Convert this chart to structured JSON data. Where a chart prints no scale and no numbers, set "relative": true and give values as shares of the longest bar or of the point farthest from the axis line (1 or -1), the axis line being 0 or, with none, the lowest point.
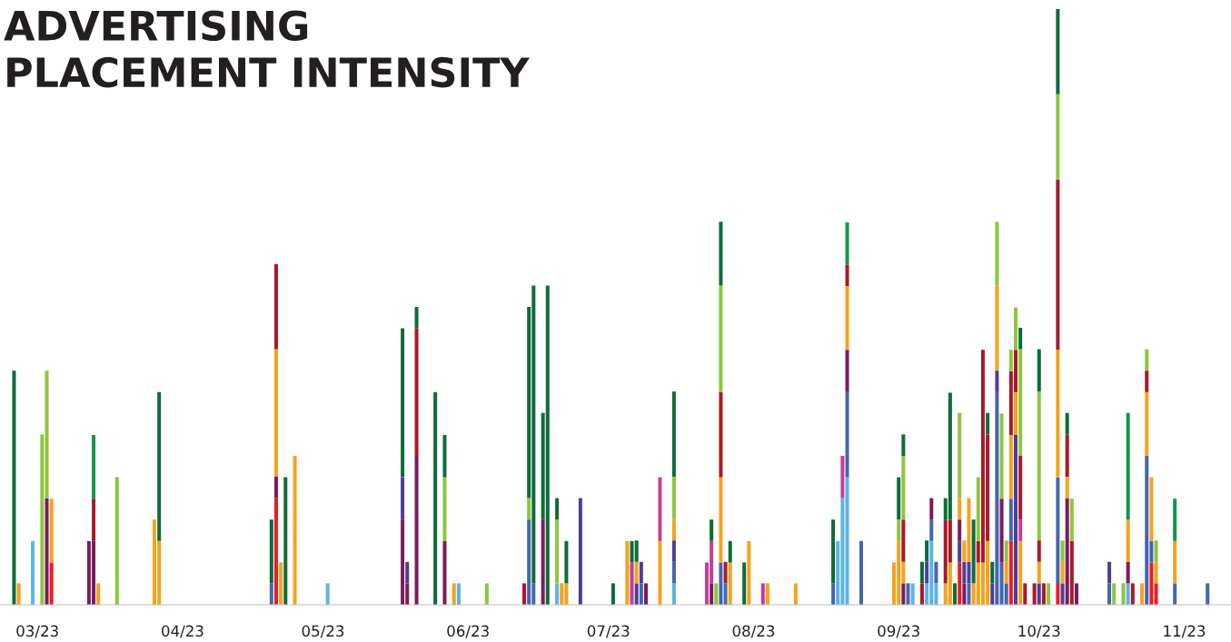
{
  "chart_data": {
    "type": "bar",
    "stacked": true,
    "relative": true,
    "title": "ADVERTISING\nPLACEMENT INTENSITY",
    "xlim": [
      "2023-02-21",
      "2023-11-11"
    ],
    "xticks": [
      {
        "value": "2023-03-01",
        "label": "03/23"
      },
      {
        "value": "2023-04-01",
        "label": "04/23"
      },
      {
        "value": "2023-05-01",
        "label": "05/23"
      },
      {
        "value": "2023-06-01",
        "label": "06/23"
      },
      {
        "value": "2023-07-01",
        "label": "07/23"
      },
      {
        "value": "2023-08-01",
        "label": "08/23"
      },
      {
        "value": "2023-09-01",
        "label": "09/23"
      },
      {
        "value": "2023-10-01",
        "label": "10/23"
      },
      {
        "value": "2023-11-01",
        "label": "11/23"
      }
    ],
    "grid": false,
    "legend": false,
    "x": [
      "2023-02-24",
      "2023-02-25",
      "2023-02-28",
      "2023-03-02",
      "2023-03-03",
      "2023-03-04",
      "2023-03-12",
      "2023-03-13",
      "2023-03-14",
      "2023-03-18",
      "2023-03-26",
      "2023-03-27",
      "2023-04-20",
      "2023-04-21",
      "2023-04-22",
      "2023-04-23",
      "2023-04-25",
      "2023-05-02",
      "2023-05-18",
      "2023-05-19",
      "2023-05-21",
      "2023-05-25",
      "2023-05-27",
      "2023-05-29",
      "2023-05-30",
      "2023-06-05",
      "2023-06-13",
      "2023-06-14",
      "2023-06-15",
      "2023-06-17",
      "2023-06-18",
      "2023-06-20",
      "2023-06-21",
      "2023-06-22",
      "2023-06-25",
      "2023-07-02",
      "2023-07-05",
      "2023-07-06",
      "2023-07-07",
      "2023-07-08",
      "2023-07-09",
      "2023-07-12",
      "2023-07-15",
      "2023-07-22",
      "2023-07-23",
      "2023-07-24",
      "2023-07-25",
      "2023-07-26",
      "2023-07-27",
      "2023-07-30",
      "2023-07-31",
      "2023-08-03",
      "2023-08-04",
      "2023-08-10",
      "2023-08-18",
      "2023-08-19",
      "2023-08-20",
      "2023-08-21",
      "2023-08-24",
      "2023-08-31",
      "2023-09-01",
      "2023-09-02",
      "2023-09-03",
      "2023-09-04",
      "2023-09-06",
      "2023-09-07",
      "2023-09-08",
      "2023-09-09",
      "2023-09-11",
      "2023-09-12",
      "2023-09-13",
      "2023-09-14",
      "2023-09-15",
      "2023-09-16",
      "2023-09-17",
      "2023-09-18",
      "2023-09-19",
      "2023-09-20",
      "2023-09-21",
      "2023-09-22",
      "2023-09-23",
      "2023-09-24",
      "2023-09-25",
      "2023-09-26",
      "2023-09-27",
      "2023-09-28",
      "2023-09-30",
      "2023-10-01",
      "2023-10-02",
      "2023-10-03",
      "2023-10-05",
      "2023-10-06",
      "2023-10-07",
      "2023-10-08",
      "2023-10-09",
      "2023-10-16",
      "2023-10-17",
      "2023-10-19",
      "2023-10-20",
      "2023-10-21",
      "2023-10-23",
      "2023-10-24",
      "2023-10-25",
      "2023-10-26",
      "2023-10-30",
      "2023-11-06"
    ],
    "series": [
      {
        "values": [
          0.393,
          0.036,
          0.107,
          0.286,
          0.179,
          0.071,
          0.107,
          0.107,
          0.036,
          0.214,
          0.143,
          0.107,
          0.036,
          0.179,
          0.071,
          0.214,
          0.25,
          0.036,
          0.143,
          0.036,
          0.25,
          0.357,
          0.107,
          0.036,
          0.036,
          0.036,
          0.036,
          0.143,
          0.036,
          0.143,
          0.536,
          0.036,
          0.036,
          0.036,
          0.179,
          0.036,
          0.107,
          0.071,
          0.036,
          0.036,
          0.036,
          0.107,
          0.036,
          0.071,
          0.036,
          0.036,
          0.071,
          0.036,
          0.071,
          0.071,
          0.107,
          0.036,
          0.036,
          0.036,
          0.036,
          0.107,
          0.179,
          0.214,
          0.107,
          0.071,
          0.107,
          0.036,
          0.036,
          0.036,
          0.036,
          0.036,
          0.107,
          0.036,
          0.036,
          0.071,
          0.036,
          0.071,
          0.036,
          0.036,
          0.036,
          0.071,
          0.071,
          0.107,
          0.036,
          0.357,
          0.071,
          0.036,
          0.107,
          0.286,
          0.107,
          0.036,
          0.036,
          0.036,
          0.036,
          0.036,
          0.035,
          0.036,
          0.179,
          0.107,
          0.036,
          0.036,
          0.036,
          0.036,
          0.036,
          0.036,
          0.036,
          0.25,
          0.071,
          0.036,
          0.036,
          0.036
        ],
        "colors": [
          "#0f6b3a",
          "#f6a21e",
          "#5db3e6",
          "#8dc63f",
          "#7a1c5c",
          "#ed1c24",
          "#7a1c5c",
          "#7a1c5c",
          "#f6a21e",
          "#8dc63f",
          "#f6a21e",
          "#f6a21e",
          "#4466b0",
          "#ed1c24",
          "#f6a21e",
          "#0f6b3a",
          "#f6a21e",
          "#5db3e6",
          "#7a1c5c",
          "#7a1c5c",
          "#7a1c5c",
          "#0f6b3a",
          "#7a1c5c",
          "#f6a21e",
          "#5db3e6",
          "#8dc63f",
          "#a71b28",
          "#4466b0",
          "#4466b0",
          "#7a1c5c",
          "#0f6b3a",
          "#5db3e6",
          "#f6a21e",
          "#f6a21e",
          "#4f3d98",
          "#0f6b3a",
          "#f6a21e",
          "#c33f98",
          "#4f3d98",
          "#4466b0",
          "#7a1c5c",
          "#f6a21e",
          "#5db3e6",
          "#c33f98",
          "#7a1c5c",
          "#8dc63f",
          "#4466b0",
          "#4466b0",
          "#f6a21e",
          "#0f6b3a",
          "#f6a21e",
          "#c33f98",
          "#f6a21e",
          "#f6a21e",
          "#4466b0",
          "#5db3e6",
          "#5db3e6",
          "#5db3e6",
          "#4466b0",
          "#f6a21e",
          "#f6a21e",
          "#7a1c5c",
          "#4466b0",
          "#5db3e6",
          "#a71b28",
          "#5db3e6",
          "#5db3e6",
          "#5db3e6",
          "#f6a21e",
          "#f6a21e",
          "#0f6b3a",
          "#ed1c24",
          "#7a1c5c",
          "#4466b0",
          "#f6a21e",
          "#f6a21e",
          "#f6a21e",
          "#f6a21e",
          "#4f3d98",
          "#4466b0",
          "#4466b0",
          "#4466b0",
          "#ed1c24",
          "#4f3d98",
          "#f6a21e",
          "#a71b28",
          "#a71b28",
          "#4f3d98",
          "#a71b28",
          "#8dc63f",
          "#ed1c24",
          "#4f3d98",
          "#7a1c5c",
          "#a71b28",
          "#7a1c5c",
          "#4466b0",
          "#8dc63f",
          "#8dc63f",
          "#5db3e6",
          "#a71b28",
          "#f6a21e",
          "#4466b0",
          "#ed1c24",
          "#ed1c24",
          "#4466b0",
          "#4466b0"
        ]
      },
      {
        "values": [
          null,
          null,
          null,
          null,
          0.214,
          0.107,
          null,
          0.071,
          null,
          null,
          null,
          0.25,
          0.107,
          0.036,
          null,
          null,
          null,
          null,
          0.071,
          0.036,
          0.214,
          null,
          0.107,
          null,
          null,
          null,
          null,
          0.036,
          0.5,
          0.179,
          null,
          0.107,
          null,
          0.071,
          null,
          null,
          null,
          0.036,
          0.036,
          0.036,
          null,
          0.107,
          0.036,
          null,
          0.071,
          null,
          0.143,
          0.036,
          0.036,
          null,
          null,
          null,
          null,
          null,
          0.107,
          null,
          0.071,
          0.143,
          null,
          null,
          0.036,
          0.036,
          null,
          null,
          0.036,
          0.036,
          0.036,
          0.036,
          0.107,
          0.071,
          null,
          0.036,
          0.036,
          0.036,
          0.107,
          0.036,
          0.357,
          0.179,
          0.036,
          0.036,
          0.107,
          0.036,
          0.071,
          0.071,
          0.036,
          null,
          null,
          0.036,
          null,
          null,
          0.179,
          0.036,
          0.036,
          0.071,
          null,
          0.036,
          null,
          null,
          0.036,
          null,
          null,
          0.107,
          0.036,
          0.036,
          0.071,
          null
        ],
        "colors": [
          null,
          null,
          null,
          null,
          "#8dc63f",
          "#f6a21e",
          null,
          "#a71b28",
          null,
          null,
          null,
          "#0f6b3a",
          "#0f6b3a",
          "#7a1c5c",
          null,
          null,
          null,
          null,
          "#4f3d98",
          "#4f3d98",
          "#a71b28",
          null,
          "#8dc63f",
          null,
          null,
          null,
          null,
          "#8dc63f",
          "#0f6b3a",
          "#0f6b3a",
          null,
          "#8dc63f",
          null,
          "#0f6b3a",
          null,
          null,
          null,
          "#0f6b3a",
          "#f6a21e",
          "#4f3d98",
          null,
          "#c33f98",
          "#4466b0",
          null,
          "#c33f98",
          null,
          "#f6a21e",
          "#a71b28",
          "#0f6b3a",
          null,
          null,
          null,
          null,
          null,
          "#0f6b3a",
          null,
          "#c33f98",
          "#4466b0",
          null,
          null,
          "#8dc63f",
          "#f6a21e",
          null,
          null,
          "#0f6b3a",
          "#4f3d98",
          "#4466b0",
          "#4466b0",
          "#a71b28",
          "#a71b28",
          null,
          "#4f3d98",
          "#4f3d98",
          "#4f3d98",
          "#0f6b3a",
          "#a71b28",
          "#a71b28",
          "#a71b28",
          "#0f6b3a",
          "#4f3d98",
          "#7a1c5c",
          "#f6a21e",
          "#4466b0",
          "#f6a21e",
          "#c33f98",
          null,
          null,
          "#f6a21e",
          null,
          null,
          "#4466b0",
          "#f6a21e",
          "#f6a21e",
          "#8dc63f",
          null,
          "#4f3d98",
          null,
          null,
          "#7a1c5c",
          null,
          null,
          "#f6a21e",
          "#4466b0",
          "#f6a21e",
          "#f6a21e",
          null
        ]
      },
      {
        "values": [
          null,
          null,
          null,
          null,
          null,
          null,
          null,
          0.107,
          null,
          null,
          null,
          null,
          null,
          0.214,
          null,
          null,
          null,
          null,
          0.25,
          null,
          0.036,
          null,
          0.071,
          null,
          null,
          null,
          null,
          0.321,
          null,
          null,
          null,
          0.036,
          null,
          null,
          null,
          null,
          null,
          null,
          0.036,
          null,
          null,
          null,
          0.036,
          null,
          0.036,
          null,
          0.143,
          null,
          null,
          null,
          null,
          null,
          null,
          null,
          null,
          null,
          null,
          0.071,
          null,
          null,
          0.071,
          0.071,
          null,
          null,
          null,
          0.036,
          0.036,
          null,
          0.036,
          0.214,
          null,
          0.036,
          0.036,
          0.107,
          null,
          0.107,
          null,
          0.036,
          null,
          0.143,
          0.143,
          0.036,
          0.107,
          0.071,
          0.107,
          null,
          null,
          0.036,
          null,
          null,
          0.214,
          0.036,
          0.071,
          null,
          null,
          null,
          null,
          null,
          0.071,
          null,
          null,
          0.036,
          0.107,
          0.036,
          0.071,
          null
        ],
        "colors": [
          null,
          null,
          null,
          null,
          null,
          null,
          null,
          "#12964a",
          null,
          null,
          null,
          null,
          null,
          "#f6a21e",
          null,
          null,
          null,
          null,
          "#0f6b3a",
          null,
          "#0f6b3a",
          null,
          "#0f6b3a",
          null,
          null,
          null,
          null,
          "#0f6b3a",
          null,
          null,
          null,
          "#0f6b3a",
          null,
          null,
          null,
          null,
          null,
          null,
          "#0f6b3a",
          null,
          null,
          null,
          "#4f3d98",
          null,
          "#0f6b3a",
          null,
          "#a71b28",
          null,
          null,
          null,
          null,
          null,
          null,
          null,
          null,
          null,
          null,
          "#7a1c5c",
          null,
          null,
          "#0f6b3a",
          "#a71b28",
          null,
          null,
          null,
          "#0f6b3a",
          "#7a1c5c",
          null,
          "#0f6b3a",
          "#0f6b3a",
          null,
          "#7a1c5c",
          "#f6a21e",
          "#f6a21e",
          null,
          "#8dc63f",
          null,
          "#0f6b3a",
          null,
          "#f6a21e",
          "#8dc63f",
          "#8dc63f",
          "#f6a21e",
          "#a71b28",
          "#a71b28",
          null,
          null,
          "#a71b28",
          null,
          null,
          "#f6a21e",
          "#8dc63f",
          "#a71b28",
          null,
          null,
          null,
          null,
          null,
          "#f6a21e",
          null,
          null,
          "#a71b28",
          "#f6a21e",
          "#8dc63f",
          "#12964a",
          null
        ]
      },
      {
        "values": [
          null,
          null,
          null,
          null,
          null,
          null,
          null,
          null,
          null,
          null,
          null,
          null,
          null,
          0.143,
          null,
          null,
          null,
          null,
          null,
          null,
          null,
          null,
          null,
          null,
          null,
          null,
          null,
          null,
          null,
          null,
          null,
          null,
          null,
          null,
          null,
          null,
          null,
          null,
          null,
          null,
          null,
          null,
          0.036,
          null,
          null,
          null,
          0.179,
          null,
          null,
          null,
          null,
          null,
          null,
          null,
          null,
          null,
          null,
          0.107,
          null,
          null,
          null,
          0.107,
          null,
          null,
          null,
          null,
          null,
          null,
          null,
          null,
          null,
          0.036,
          null,
          null,
          null,
          null,
          null,
          null,
          null,
          0.107,
          null,
          null,
          0.107,
          0.071,
          0.179,
          null,
          null,
          0.25,
          null,
          null,
          0.286,
          null,
          0.036,
          null,
          null,
          null,
          null,
          null,
          0.179,
          null,
          null,
          0.036,
          null,
          null,
          null,
          null
        ],
        "colors": [
          null,
          null,
          null,
          null,
          null,
          null,
          null,
          null,
          null,
          null,
          null,
          null,
          null,
          "#a71b28",
          null,
          null,
          null,
          null,
          null,
          null,
          null,
          null,
          null,
          null,
          null,
          null,
          null,
          null,
          null,
          null,
          null,
          null,
          null,
          null,
          null,
          null,
          null,
          null,
          null,
          null,
          null,
          null,
          "#f6a21e",
          null,
          null,
          null,
          "#8dc63f",
          null,
          null,
          null,
          null,
          null,
          null,
          null,
          null,
          null,
          null,
          "#f6a21e",
          null,
          null,
          null,
          "#8dc63f",
          null,
          null,
          null,
          null,
          null,
          null,
          null,
          null,
          null,
          "#f6a21e",
          null,
          null,
          null,
          null,
          null,
          null,
          null,
          "#8dc63f",
          null,
          null,
          "#a71b28",
          "#8dc63f",
          "#8dc63f",
          null,
          null,
          "#8dc63f",
          null,
          null,
          "#a71b28",
          null,
          "#0f6b3a",
          null,
          null,
          null,
          null,
          null,
          "#12964a",
          null,
          null,
          "#8dc63f",
          null,
          null,
          null,
          null
        ]
      },
      {
        "values": [
          null,
          null,
          null,
          null,
          null,
          null,
          null,
          null,
          null,
          null,
          null,
          null,
          null,
          null,
          null,
          null,
          null,
          null,
          null,
          null,
          null,
          null,
          null,
          null,
          null,
          null,
          null,
          null,
          null,
          null,
          null,
          null,
          null,
          null,
          null,
          null,
          null,
          null,
          null,
          null,
          null,
          null,
          0.071,
          null,
          null,
          null,
          0.107,
          null,
          null,
          null,
          null,
          null,
          null,
          null,
          null,
          null,
          null,
          0.036,
          null,
          null,
          null,
          0.036,
          null,
          null,
          null,
          null,
          null,
          null,
          null,
          null,
          null,
          0.143,
          null,
          null,
          null,
          null,
          null,
          null,
          null,
          null,
          null,
          null,
          0.036,
          null,
          0.036,
          null,
          null,
          0.071,
          null,
          null,
          0.143,
          null,
          null,
          null,
          null,
          null,
          null,
          null,
          null,
          null,
          null,
          null,
          null,
          null,
          null,
          null
        ],
        "colors": [
          null,
          null,
          null,
          null,
          null,
          null,
          null,
          null,
          null,
          null,
          null,
          null,
          null,
          null,
          null,
          null,
          null,
          null,
          null,
          null,
          null,
          null,
          null,
          null,
          null,
          null,
          null,
          null,
          null,
          null,
          null,
          null,
          null,
          null,
          null,
          null,
          null,
          null,
          null,
          null,
          null,
          null,
          "#8dc63f",
          null,
          null,
          null,
          "#0f6b3a",
          null,
          null,
          null,
          null,
          null,
          null,
          null,
          null,
          null,
          null,
          "#a71b28",
          null,
          null,
          null,
          "#0f6b3a",
          null,
          null,
          null,
          null,
          null,
          null,
          null,
          null,
          null,
          "#8dc63f",
          null,
          null,
          null,
          null,
          null,
          null,
          null,
          null,
          null,
          null,
          "#8dc63f",
          null,
          "#0f6b3a",
          null,
          null,
          "#0f6b3a",
          null,
          null,
          "#8dc63f",
          null,
          null,
          null,
          null,
          null,
          null,
          null,
          null,
          null,
          null,
          null,
          null,
          null,
          null,
          null
        ]
      },
      {
        "values": [
          null,
          null,
          null,
          null,
          null,
          null,
          null,
          null,
          null,
          null,
          null,
          null,
          null,
          null,
          null,
          null,
          null,
          null,
          null,
          null,
          null,
          null,
          null,
          null,
          null,
          null,
          null,
          null,
          null,
          null,
          null,
          null,
          null,
          null,
          null,
          null,
          null,
          null,
          null,
          null,
          null,
          null,
          0.143,
          null,
          null,
          null,
          null,
          null,
          null,
          null,
          null,
          null,
          null,
          null,
          null,
          null,
          null,
          0.071,
          null,
          null,
          null,
          null,
          null,
          null,
          null,
          null,
          null,
          null,
          null,
          null,
          null,
          null,
          null,
          null,
          null,
          null,
          null,
          null,
          null,
          null,
          null,
          null,
          null,
          null,
          null,
          null,
          null,
          null,
          null,
          null,
          0.143,
          null,
          null,
          null,
          null,
          null,
          null,
          null,
          null,
          null,
          null,
          null,
          null,
          null,
          null,
          null
        ],
        "colors": [
          null,
          null,
          null,
          null,
          null,
          null,
          null,
          null,
          null,
          null,
          null,
          null,
          null,
          null,
          null,
          null,
          null,
          null,
          null,
          null,
          null,
          null,
          null,
          null,
          null,
          null,
          null,
          null,
          null,
          null,
          null,
          null,
          null,
          null,
          null,
          null,
          null,
          null,
          null,
          null,
          null,
          null,
          "#0f6b3a",
          null,
          null,
          null,
          null,
          null,
          null,
          null,
          null,
          null,
          null,
          null,
          null,
          null,
          null,
          "#12964a",
          null,
          null,
          null,
          null,
          null,
          null,
          null,
          null,
          null,
          null,
          null,
          null,
          null,
          null,
          null,
          null,
          null,
          null,
          null,
          null,
          null,
          null,
          null,
          null,
          null,
          null,
          null,
          null,
          null,
          null,
          null,
          null,
          "#0f6b3a",
          null,
          null,
          null,
          null,
          null,
          null,
          null,
          null,
          null,
          null,
          null,
          null,
          null,
          null,
          null
        ]
      }
    ]
  }
}
